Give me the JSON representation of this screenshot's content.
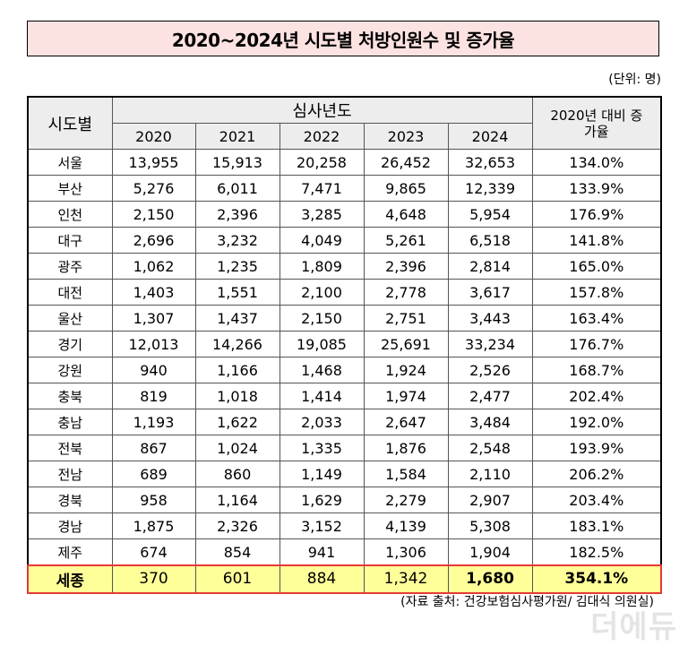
{
  "title": "2020~2024년 시도별 처방인원수 및 증가율",
  "unit": "(단위: 명)",
  "header": {
    "region": "시도별",
    "year_group": "심사년도",
    "years": [
      "2020",
      "2021",
      "2022",
      "2023",
      "2024"
    ],
    "rate": "2020년 대비 증가율"
  },
  "rows": [
    {
      "region": "서울",
      "values": [
        "13,955",
        "15,913",
        "20,258",
        "26,452",
        "32,653"
      ],
      "rate": "134.0%"
    },
    {
      "region": "부산",
      "values": [
        "5,276",
        "6,011",
        "7,471",
        "9,865",
        "12,339"
      ],
      "rate": "133.9%"
    },
    {
      "region": "인천",
      "values": [
        "2,150",
        "2,396",
        "3,285",
        "4,648",
        "5,954"
      ],
      "rate": "176.9%"
    },
    {
      "region": "대구",
      "values": [
        "2,696",
        "3,232",
        "4,049",
        "5,261",
        "6,518"
      ],
      "rate": "141.8%"
    },
    {
      "region": "광주",
      "values": [
        "1,062",
        "1,235",
        "1,809",
        "2,396",
        "2,814"
      ],
      "rate": "165.0%"
    },
    {
      "region": "대전",
      "values": [
        "1,403",
        "1,551",
        "2,100",
        "2,778",
        "3,617"
      ],
      "rate": "157.8%"
    },
    {
      "region": "울산",
      "values": [
        "1,307",
        "1,437",
        "2,150",
        "2,751",
        "3,443"
      ],
      "rate": "163.4%"
    },
    {
      "region": "경기",
      "values": [
        "12,013",
        "14,266",
        "19,085",
        "25,691",
        "33,234"
      ],
      "rate": "176.7%"
    },
    {
      "region": "강원",
      "values": [
        "940",
        "1,166",
        "1,468",
        "1,924",
        "2,526"
      ],
      "rate": "168.7%"
    },
    {
      "region": "충북",
      "values": [
        "819",
        "1,018",
        "1,414",
        "1,974",
        "2,477"
      ],
      "rate": "202.4%"
    },
    {
      "region": "충남",
      "values": [
        "1,193",
        "1,622",
        "2,033",
        "2,647",
        "3,484"
      ],
      "rate": "192.0%"
    },
    {
      "region": "전북",
      "values": [
        "867",
        "1,024",
        "1,335",
        "1,876",
        "2,548"
      ],
      "rate": "193.9%"
    },
    {
      "region": "전남",
      "values": [
        "689",
        "860",
        "1,149",
        "1,584",
        "2,110"
      ],
      "rate": "206.2%"
    },
    {
      "region": "경북",
      "values": [
        "958",
        "1,164",
        "1,629",
        "2,279",
        "2,907"
      ],
      "rate": "203.4%"
    },
    {
      "region": "경남",
      "values": [
        "1,875",
        "2,326",
        "3,152",
        "4,139",
        "5,308"
      ],
      "rate": "183.1%"
    },
    {
      "region": "제주",
      "values": [
        "674",
        "854",
        "941",
        "1,306",
        "1,904"
      ],
      "rate": "182.5%"
    }
  ],
  "highlight_row": {
    "region": "세종",
    "values": [
      "370",
      "601",
      "884",
      "1,342",
      "1,680"
    ],
    "rate": "354.1%"
  },
  "source": "(자료 출처: 건강보험심사평가원/ 김대식 의원실)",
  "watermark": "더에듀",
  "colors": {
    "title_bg": "#fde2e2",
    "header_bg": "#ededed",
    "highlight_bg": "#ffff99",
    "highlight_border": "#e53935"
  }
}
